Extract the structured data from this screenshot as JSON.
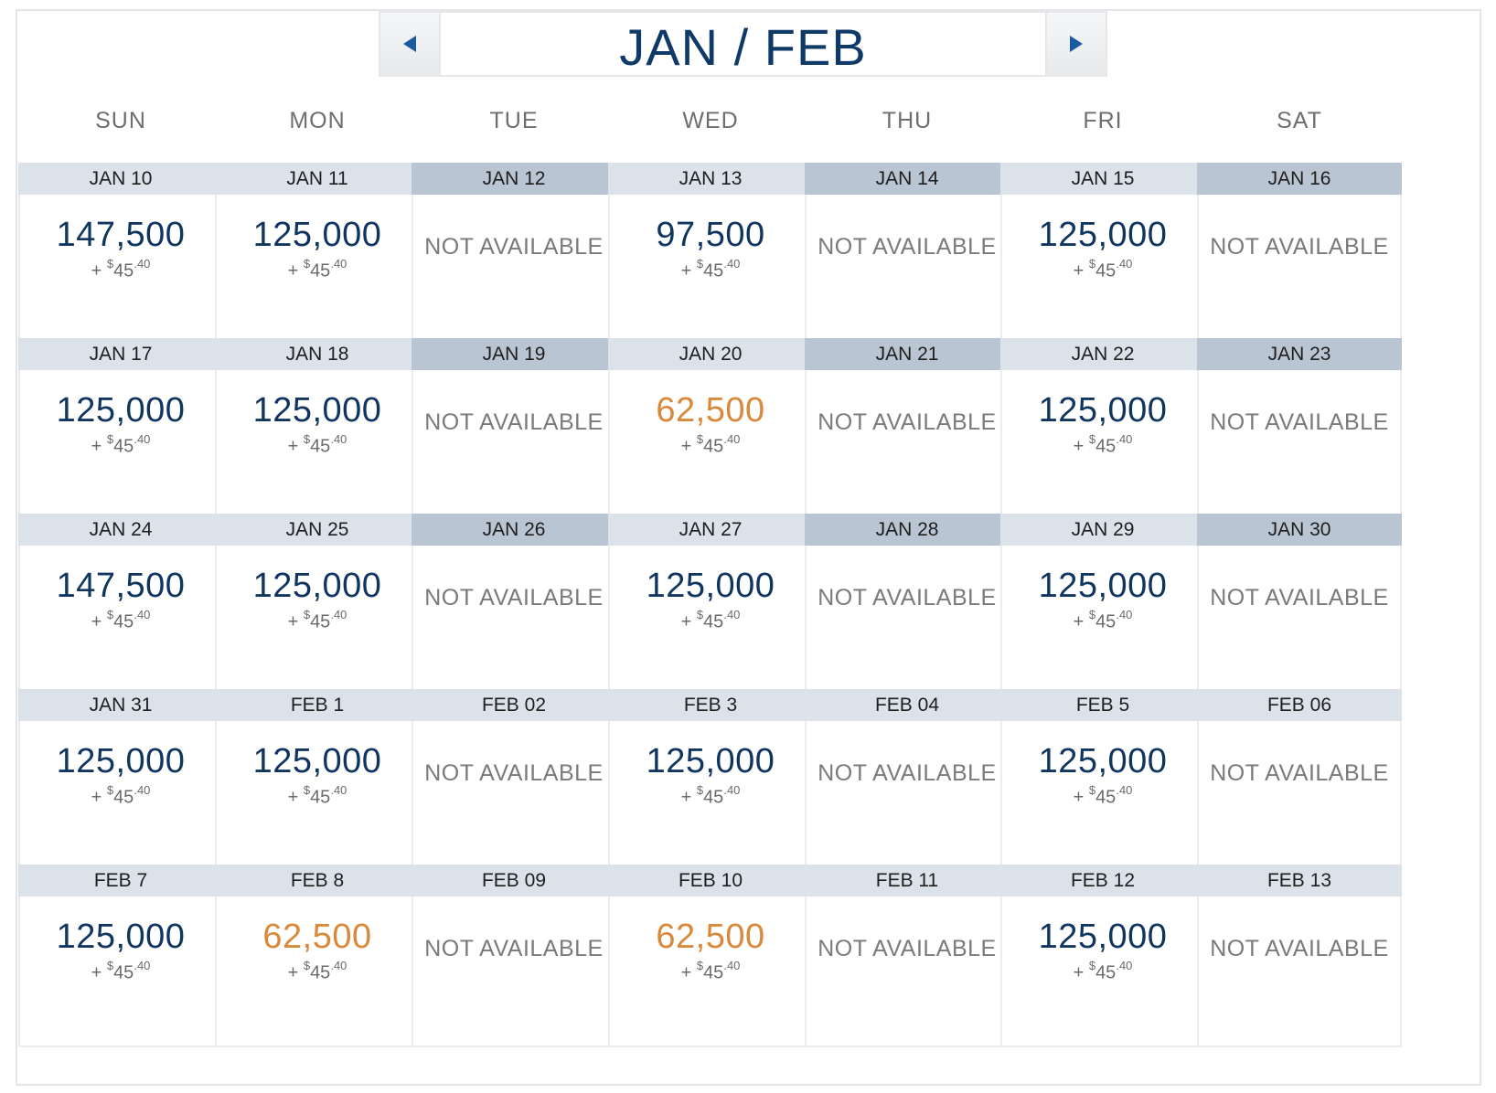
{
  "title": "JAN / FEB",
  "weekdays": [
    "SUN",
    "MON",
    "TUE",
    "WED",
    "THU",
    "FRI",
    "SAT"
  ],
  "colors": {
    "accent": "#0f3a67",
    "deal": "#d9893a",
    "header": "#dbe2ea",
    "header_na": "#b9c5d2"
  },
  "icons": {
    "prev": "left-triangle-icon",
    "next": "right-triangle-icon"
  },
  "fee": {
    "prefix": "+ ",
    "currency": "$",
    "dollars": "45",
    "cents": "40"
  },
  "na_label": "NOT AVAILABLE",
  "weeks": [
    [
      {
        "date": "JAN 10",
        "miles": "147,500",
        "status": "available"
      },
      {
        "date": "JAN 11",
        "miles": "125,000",
        "status": "available"
      },
      {
        "date": "JAN 12",
        "miles": "",
        "status": "na-dark"
      },
      {
        "date": "JAN 13",
        "miles": "97,500",
        "status": "available"
      },
      {
        "date": "JAN 14",
        "miles": "",
        "status": "na-dark"
      },
      {
        "date": "JAN 15",
        "miles": "125,000",
        "status": "available"
      },
      {
        "date": "JAN 16",
        "miles": "",
        "status": "na-dark"
      }
    ],
    [
      {
        "date": "JAN 17",
        "miles": "125,000",
        "status": "available"
      },
      {
        "date": "JAN 18",
        "miles": "125,000",
        "status": "available"
      },
      {
        "date": "JAN 19",
        "miles": "",
        "status": "na-dark"
      },
      {
        "date": "JAN 20",
        "miles": "62,500",
        "status": "deal"
      },
      {
        "date": "JAN 21",
        "miles": "",
        "status": "na-dark"
      },
      {
        "date": "JAN 22",
        "miles": "125,000",
        "status": "available"
      },
      {
        "date": "JAN 23",
        "miles": "",
        "status": "na-dark"
      }
    ],
    [
      {
        "date": "JAN 24",
        "miles": "147,500",
        "status": "available"
      },
      {
        "date": "JAN 25",
        "miles": "125,000",
        "status": "available"
      },
      {
        "date": "JAN 26",
        "miles": "",
        "status": "na-dark"
      },
      {
        "date": "JAN 27",
        "miles": "125,000",
        "status": "available"
      },
      {
        "date": "JAN 28",
        "miles": "",
        "status": "na-dark"
      },
      {
        "date": "JAN 29",
        "miles": "125,000",
        "status": "available"
      },
      {
        "date": "JAN 30",
        "miles": "",
        "status": "na-dark"
      }
    ],
    [
      {
        "date": "JAN 31",
        "miles": "125,000",
        "status": "available"
      },
      {
        "date": "FEB 1",
        "miles": "125,000",
        "status": "available"
      },
      {
        "date": "FEB 02",
        "miles": "",
        "status": "na-light"
      },
      {
        "date": "FEB 3",
        "miles": "125,000",
        "status": "available"
      },
      {
        "date": "FEB 04",
        "miles": "",
        "status": "na-light"
      },
      {
        "date": "FEB 5",
        "miles": "125,000",
        "status": "available"
      },
      {
        "date": "FEB 06",
        "miles": "",
        "status": "na-light"
      }
    ],
    [
      {
        "date": "FEB 7",
        "miles": "125,000",
        "status": "available"
      },
      {
        "date": "FEB 8",
        "miles": "62,500",
        "status": "deal"
      },
      {
        "date": "FEB 09",
        "miles": "",
        "status": "na-light"
      },
      {
        "date": "FEB 10",
        "miles": "62,500",
        "status": "deal"
      },
      {
        "date": "FEB 11",
        "miles": "",
        "status": "na-light"
      },
      {
        "date": "FEB 12",
        "miles": "125,000",
        "status": "available"
      },
      {
        "date": "FEB 13",
        "miles": "",
        "status": "na-light"
      }
    ]
  ]
}
